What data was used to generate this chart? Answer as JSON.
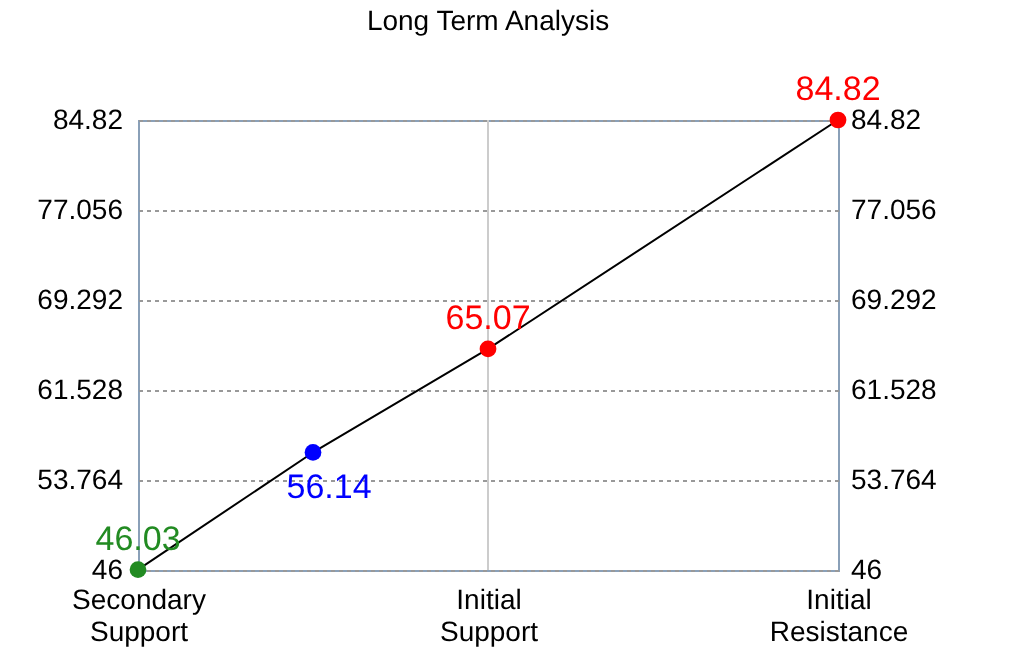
{
  "chart_data": {
    "type": "line",
    "title": "Long Term Analysis",
    "categories": [
      "Secondary Support",
      null,
      "Initial Support",
      null,
      "Initial Resistance"
    ],
    "series": [
      {
        "values": [
          46.03,
          56.14,
          65.07,
          null,
          84.82
        ],
        "color": "#000000",
        "colors": [
          "#228b22",
          "#0000ff",
          "#ff0000",
          null,
          "#ff0000"
        ]
      }
    ],
    "data_labels": true,
    "marker": "circle",
    "ylim": [
      46,
      84.82
    ],
    "yticks": [
      46,
      53.764,
      61.528,
      69.292,
      77.056,
      84.82
    ],
    "y2lim": [
      46,
      84.82
    ],
    "y2ticks": [
      46,
      53.764,
      61.528,
      69.292,
      77.056,
      84.82
    ],
    "ref_lines": [
      {
        "axis": "x",
        "value": "Initial Support",
        "color": "#cccccc",
        "line_style": "solid"
      }
    ],
    "grid": "y"
  }
}
